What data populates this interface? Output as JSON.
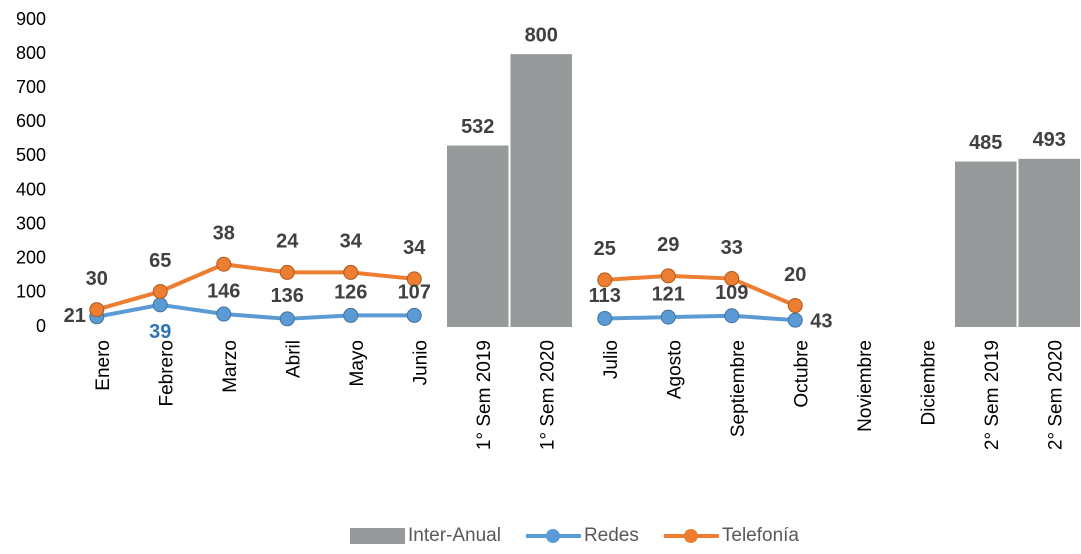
{
  "chart_data": {
    "type": "combo",
    "stacked_lines": true,
    "categories": [
      "Enero",
      "Febrero",
      "Marzo",
      "Abril",
      "Mayo",
      "Junio",
      "1° Sem 2019",
      "1° Sem 2020",
      "Julio",
      "Agosto",
      "Septiembre",
      "Octubre",
      "Noviembre",
      "Diciembre",
      "2° Sem 2019",
      "2° Sem 2020"
    ],
    "series": [
      {
        "name": "Inter-Anual",
        "type": "bar",
        "color": "#969a9a",
        "values": [
          null,
          null,
          null,
          null,
          null,
          null,
          532,
          800,
          null,
          null,
          null,
          null,
          null,
          null,
          485,
          493
        ]
      },
      {
        "name": "Redes",
        "type": "line",
        "color": "#5b9bd5",
        "values": [
          30,
          65,
          38,
          24,
          34,
          34,
          null,
          null,
          25,
          29,
          33,
          20,
          null,
          null,
          null,
          null
        ]
      },
      {
        "name": "Telefonía",
        "type": "line",
        "color": "#ed7d31",
        "values": [
          21,
          39,
          146,
          136,
          126,
          107,
          null,
          null,
          113,
          121,
          109,
          43,
          null,
          null,
          null,
          null
        ]
      }
    ],
    "ylim": [
      0,
      900
    ],
    "yticks": [
      0,
      100,
      200,
      300,
      400,
      500,
      600,
      700,
      800,
      900
    ],
    "grid": false,
    "legend": "bottom"
  }
}
